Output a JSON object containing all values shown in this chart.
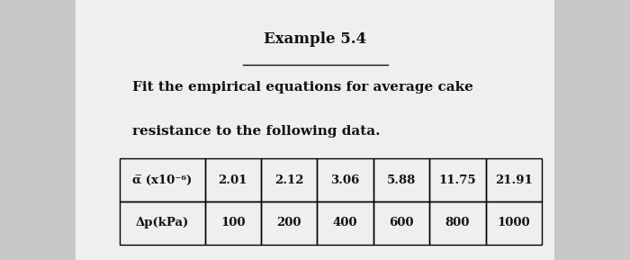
{
  "title": "Example 5.4",
  "paragraph_line1": "Fit the empirical equations for average cake",
  "paragraph_line2": "resistance to the following data.",
  "row1_header": "α̅ (x10⁻⁶)",
  "row2_header": "Δp(kPa)",
  "row1_values": [
    "2.01",
    "2.12",
    "3.06",
    "5.88",
    "11.75",
    "21.91"
  ],
  "row2_values": [
    "100",
    "200",
    "400",
    "600",
    "800",
    "1000"
  ],
  "bg_color": "#c8c8c8",
  "paper_color": "#efefef",
  "text_color": "#111111",
  "title_fontsize": 12,
  "para_fontsize": 11,
  "table_fontsize": 9.5
}
